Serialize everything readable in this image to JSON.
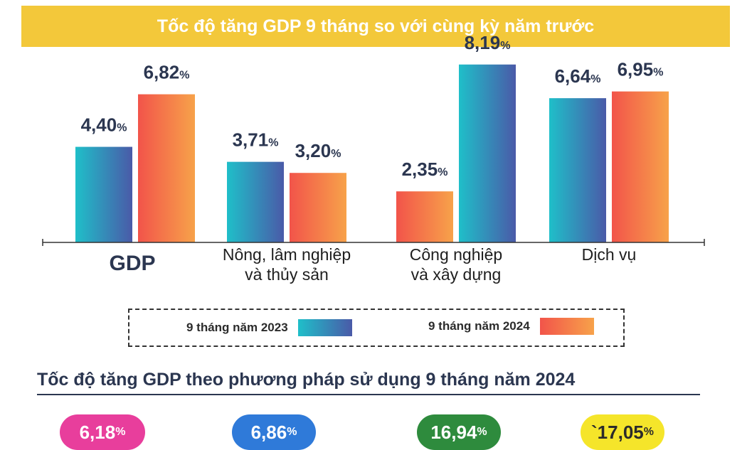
{
  "header": {
    "title": "Tốc độ tăng GDP 9 tháng so với cùng kỳ năm trước"
  },
  "chart_data": {
    "type": "bar",
    "categories": [
      "GDP",
      "Nông, lâm nghiệp\nvà thủy sản",
      "Công nghiệp\nvà xây dựng",
      "Dịch vụ"
    ],
    "series": [
      {
        "name": "9 tháng năm 2023",
        "values": [
          4.4,
          3.71,
          2.35,
          6.64
        ],
        "labels": [
          "4,40",
          "3,71",
          "2,35",
          "6,64"
        ]
      },
      {
        "name": "9 tháng năm 2024",
        "values": [
          6.82,
          3.2,
          8.19,
          6.95
        ],
        "labels": [
          "6,82",
          "3,20",
          "8,19",
          "6,95"
        ]
      }
    ],
    "unit": "%",
    "ylim": [
      0,
      9
    ],
    "grid": false,
    "legend_position": "bottom"
  },
  "section": {
    "title": "Tốc độ tăng GDP theo phương pháp sử dụng 9 tháng năm 2024"
  },
  "pills": [
    {
      "value": "6,18",
      "unit": "%",
      "color": "#e83e9c"
    },
    {
      "value": "6,86",
      "unit": "%",
      "color": "#2f7ad9"
    },
    {
      "value": "16,94",
      "unit": "%",
      "color": "#2e8b3d"
    },
    {
      "value": "`17,05",
      "unit": "%",
      "color": "#f5e52a"
    }
  ],
  "colors": {
    "banner": "#f3c83a",
    "series2023": [
      "#1fbfc9",
      "#4a5aa8"
    ],
    "series2024": [
      "#f2544a",
      "#f7a24a"
    ],
    "value_text": "#2b3650"
  }
}
